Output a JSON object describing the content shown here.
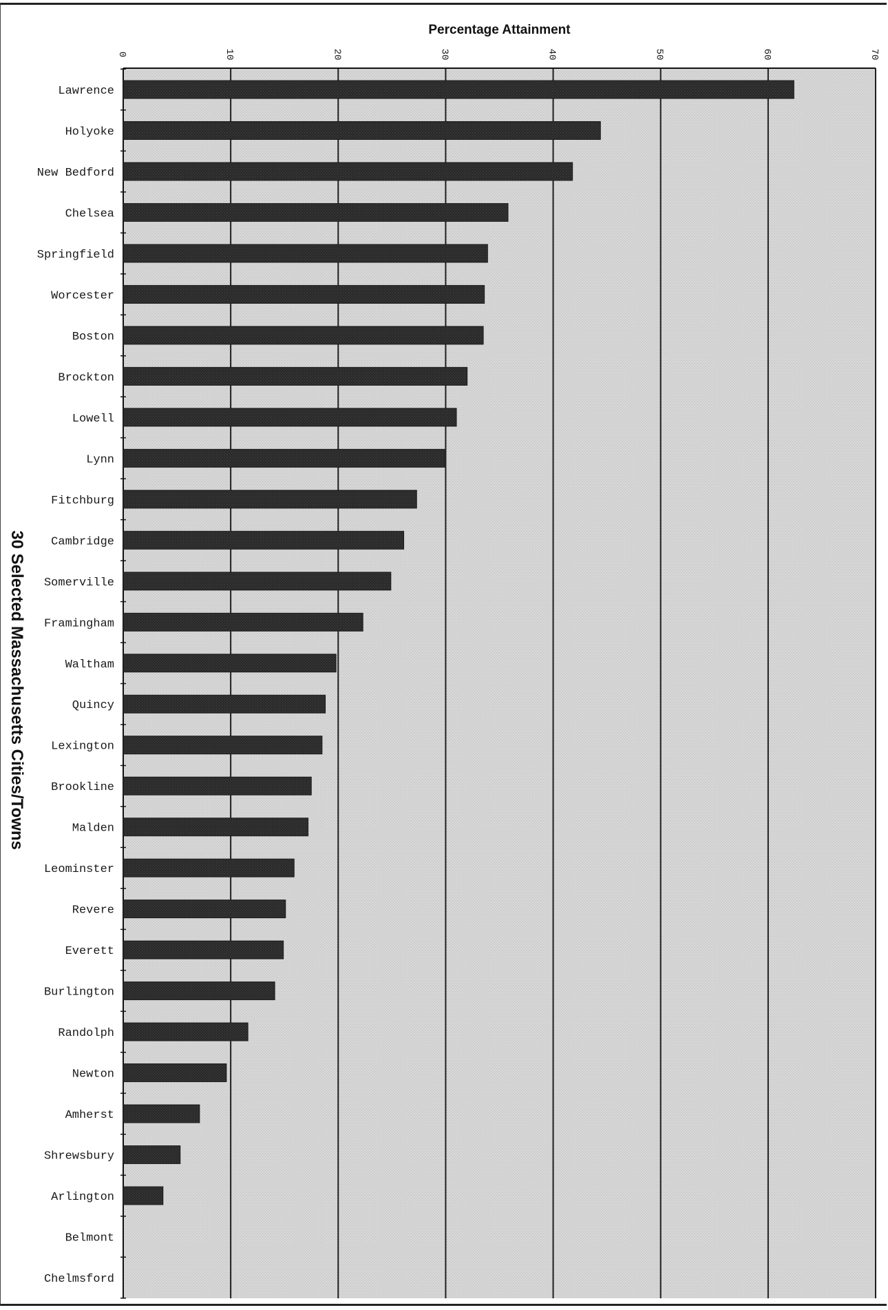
{
  "chart_data": {
    "type": "bar",
    "orientation": "horizontal",
    "title": "",
    "xlabel": "Percentage Attainment",
    "ylabel": "30 Selected Massachusetts Cities/Towns",
    "xlim": [
      0,
      70
    ],
    "xticks": [
      0,
      10,
      20,
      30,
      40,
      50,
      60,
      70
    ],
    "grid": true,
    "legend": "none",
    "bar_color": "#2e2e2e",
    "plot_background": "#d4d4d4",
    "categories": [
      "Lawrence",
      "Holyoke",
      "New Bedford",
      "Chelsea",
      "Springfield",
      "Worcester",
      "Boston",
      "Brockton",
      "Lowell",
      "Lynn",
      "Fitchburg",
      "Cambridge",
      "Somerville",
      "Framingham",
      "Waltham",
      "Quincy",
      "Lexington",
      "Brookline",
      "Malden",
      "Leominster",
      "Revere",
      "Everett",
      "Burlington",
      "Randolph",
      "Newton",
      "Amherst",
      "Shrewsbury",
      "Arlington",
      "Belmont",
      "Chelmsford"
    ],
    "values": [
      62.4,
      44.4,
      41.8,
      35.8,
      33.9,
      33.6,
      33.5,
      32.0,
      31.0,
      29.9,
      27.3,
      26.1,
      24.9,
      22.3,
      19.8,
      18.8,
      18.5,
      17.5,
      17.2,
      15.9,
      15.1,
      14.9,
      14.1,
      11.6,
      9.6,
      7.1,
      5.3,
      3.7,
      0,
      0
    ]
  }
}
